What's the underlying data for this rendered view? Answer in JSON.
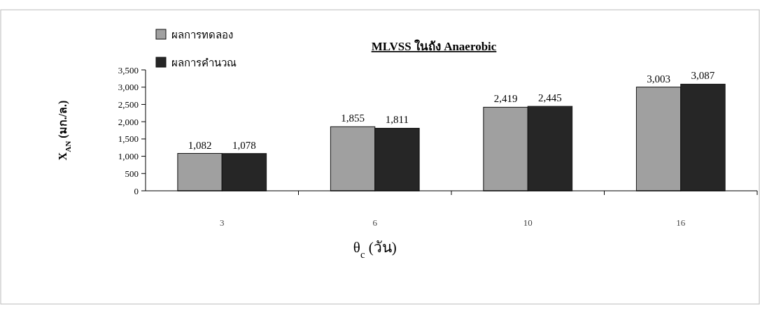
{
  "chart_data": {
    "type": "bar",
    "title": "MLVSS ในถัง Anaerobic",
    "xlabel": "θ$_{c}$ (วัน)",
    "ylabel": "X$_{AN}$ (มก./ล.)",
    "categories": [
      "3",
      "6",
      "10",
      "16"
    ],
    "series": [
      {
        "name": "ผลการทดลอง",
        "color": "#a0a0a0",
        "values": [
          1082,
          1855,
          2419,
          3003
        ],
        "value_labels": [
          "1,082",
          "1,855",
          "2,419",
          "3,003"
        ]
      },
      {
        "name": "ผลการคำนวณ",
        "color": "#262626",
        "values": [
          1078,
          1811,
          2445,
          3087
        ],
        "value_labels": [
          "1,078",
          "1,811",
          "2,445",
          "3,087"
        ]
      }
    ],
    "ylim": [
      0,
      3500
    ],
    "yticks": [
      0,
      {
        "value": 500,
        "label": "500"
      },
      {
        "value": 1000,
        "label": "1,000"
      },
      {
        "value": 1500,
        "label": "1,500"
      },
      {
        "value": 2000,
        "label": "2,000"
      },
      {
        "value": 2500,
        "label": "2,500"
      },
      {
        "value": 3000,
        "label": "3,000"
      },
      {
        "value": 3500,
        "label": "3,500"
      }
    ],
    "legend": "top left",
    "grid": false
  }
}
